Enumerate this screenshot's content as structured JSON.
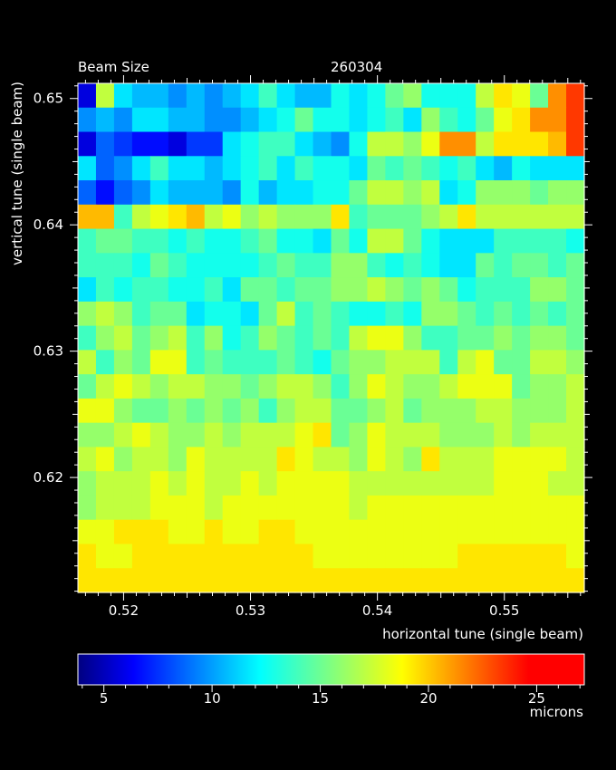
{
  "chart_data": {
    "type": "heatmap",
    "title_left": "Beam Size",
    "title_right": "260304",
    "xlabel": "horizontal tune (single beam)",
    "ylabel": "vertical tune (single beam)",
    "xlim": [
      0.5164,
      0.5563
    ],
    "ylim": [
      0.6109,
      0.6512
    ],
    "x_ticks": [
      0.52,
      0.53,
      0.54,
      0.55
    ],
    "x_tick_labels": [
      "0.52",
      "0.53",
      "0.54",
      "0.55"
    ],
    "y_ticks": [
      0.62,
      0.63,
      0.64,
      0.65
    ],
    "y_tick_labels": [
      "0.62",
      "0.63",
      "0.64",
      "0.65"
    ],
    "colorbar": {
      "min": 3.8,
      "max": 27.2,
      "ticks": [
        5,
        10,
        15,
        20,
        25
      ],
      "tick_labels": [
        "5",
        "10",
        "15",
        "20",
        "25"
      ],
      "unit": "microns",
      "colormap": "jet"
    },
    "grid": false,
    "values": [
      [
        6,
        17,
        12,
        11,
        11,
        10,
        11,
        10,
        11,
        12,
        14,
        12,
        11,
        11,
        13,
        12,
        13,
        15,
        16,
        13,
        13,
        13,
        17,
        19,
        18,
        15,
        21,
        23
      ],
      [
        10,
        11,
        10,
        12,
        12,
        11,
        11,
        10,
        10,
        11,
        12,
        13,
        15,
        13,
        13,
        12,
        13,
        14,
        12,
        16,
        14,
        13,
        15,
        18,
        19,
        21,
        21,
        23
      ],
      [
        6,
        9,
        8,
        7,
        7,
        6,
        8,
        8,
        12,
        13,
        14,
        14,
        12,
        11,
        10,
        13,
        17,
        17,
        16,
        18,
        21,
        21,
        17,
        19,
        19,
        19,
        20,
        23
      ],
      [
        12,
        9,
        10,
        12,
        14,
        12,
        12,
        11,
        12,
        13,
        14,
        12,
        14,
        13,
        13,
        12,
        15,
        14,
        15,
        14,
        13,
        14,
        12,
        11,
        13,
        12,
        12,
        12
      ],
      [
        9,
        7,
        9,
        10,
        12,
        11,
        11,
        11,
        10,
        13,
        11,
        12,
        12,
        13,
        13,
        15,
        17,
        17,
        16,
        17,
        12,
        13,
        16,
        16,
        16,
        15,
        16,
        16
      ],
      [
        20,
        20,
        14,
        17,
        18,
        19,
        20,
        17,
        18,
        16,
        17,
        16,
        16,
        16,
        19,
        14,
        15,
        15,
        15,
        16,
        17,
        19,
        17,
        17,
        17,
        17,
        17,
        17
      ],
      [
        14,
        15,
        15,
        14,
        14,
        13,
        14,
        13,
        13,
        14,
        15,
        13,
        13,
        12,
        15,
        13,
        17,
        17,
        15,
        13,
        12,
        12,
        12,
        14,
        14,
        14,
        14,
        13
      ],
      [
        14,
        14,
        14,
        13,
        15,
        14,
        13,
        13,
        13,
        13,
        14,
        15,
        14,
        14,
        16,
        16,
        14,
        13,
        14,
        13,
        12,
        12,
        15,
        14,
        15,
        15,
        14,
        15
      ],
      [
        12,
        14,
        13,
        14,
        14,
        13,
        13,
        14,
        12,
        15,
        15,
        14,
        15,
        15,
        16,
        16,
        17,
        16,
        15,
        16,
        15,
        13,
        14,
        14,
        14,
        16,
        16,
        15
      ],
      [
        16,
        17,
        16,
        14,
        15,
        15,
        12,
        13,
        13,
        12,
        15,
        17,
        14,
        15,
        14,
        13,
        13,
        14,
        13,
        16,
        16,
        15,
        14,
        15,
        14,
        15,
        14,
        15
      ],
      [
        14,
        16,
        17,
        15,
        16,
        17,
        14,
        16,
        13,
        14,
        16,
        15,
        14,
        15,
        14,
        17,
        18,
        18,
        16,
        14,
        14,
        15,
        15,
        16,
        15,
        16,
        16,
        15
      ],
      [
        17,
        14,
        16,
        15,
        18,
        18,
        14,
        15,
        14,
        14,
        14,
        15,
        14,
        13,
        15,
        16,
        16,
        17,
        17,
        17,
        14,
        17,
        18,
        15,
        15,
        17,
        17,
        16
      ],
      [
        15,
        17,
        18,
        17,
        16,
        17,
        17,
        16,
        16,
        15,
        16,
        17,
        17,
        16,
        14,
        16,
        18,
        17,
        16,
        16,
        17,
        18,
        18,
        18,
        15,
        16,
        16,
        17
      ],
      [
        18,
        18,
        16,
        15,
        15,
        16,
        15,
        16,
        15,
        16,
        14,
        16,
        17,
        17,
        15,
        15,
        16,
        17,
        15,
        16,
        16,
        16,
        17,
        17,
        16,
        16,
        16,
        17
      ],
      [
        16,
        16,
        17,
        18,
        17,
        16,
        16,
        17,
        16,
        17,
        17,
        17,
        18,
        19,
        15,
        16,
        18,
        17,
        17,
        17,
        16,
        16,
        16,
        17,
        16,
        17,
        17,
        17
      ],
      [
        17,
        18,
        16,
        17,
        17,
        16,
        18,
        17,
        17,
        17,
        17,
        19,
        18,
        17,
        17,
        16,
        18,
        17,
        16,
        19,
        17,
        17,
        17,
        18,
        18,
        18,
        18,
        17
      ],
      [
        16,
        17,
        17,
        17,
        18,
        17,
        18,
        17,
        17,
        18,
        17,
        18,
        18,
        18,
        18,
        17,
        17,
        17,
        17,
        17,
        17,
        17,
        17,
        18,
        18,
        18,
        17,
        17
      ],
      [
        16,
        17,
        17,
        17,
        18,
        18,
        18,
        17,
        18,
        18,
        18,
        18,
        18,
        18,
        18,
        17,
        18,
        18,
        18,
        18,
        18,
        18,
        18,
        18,
        18,
        18,
        18,
        18
      ],
      [
        18,
        18,
        19,
        19,
        19,
        18,
        18,
        19,
        18,
        18,
        19,
        19,
        18,
        18,
        18,
        18,
        18,
        18,
        18,
        18,
        18,
        18,
        18,
        18,
        18,
        18,
        18,
        18
      ],
      [
        19,
        18,
        18,
        19,
        19,
        19,
        19,
        19,
        19,
        19,
        19,
        19,
        19,
        18,
        18,
        18,
        18,
        18,
        18,
        18,
        18,
        19,
        19,
        19,
        19,
        19,
        19,
        18
      ],
      [
        19,
        19,
        19,
        19,
        19,
        19,
        19,
        19,
        19,
        19,
        19,
        19,
        19,
        19,
        19,
        19,
        19,
        19,
        19,
        19,
        19,
        19,
        19,
        19,
        19,
        19,
        19,
        19
      ]
    ]
  }
}
